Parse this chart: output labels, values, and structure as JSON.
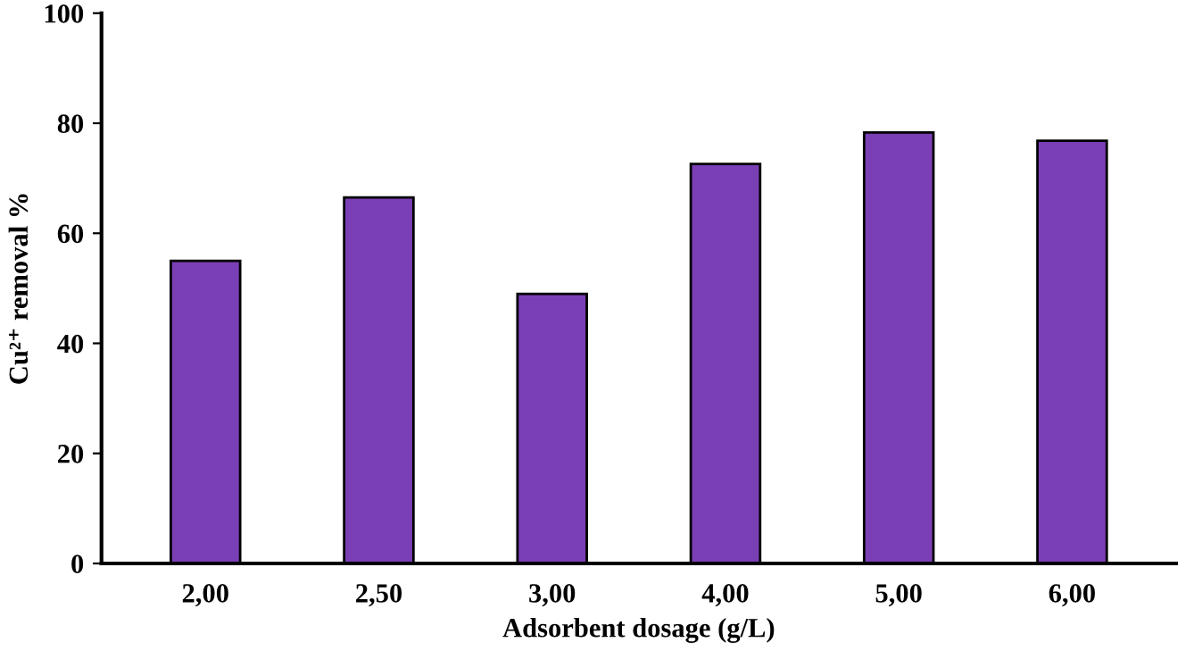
{
  "chart_data": {
    "type": "bar",
    "xlabel": "Adsorbent dosage (g/L)",
    "ylabel": "Cu²⁺ removal %",
    "categories": [
      "2,00",
      "2,50",
      "3,00",
      "4,00",
      "5,00",
      "6,00"
    ],
    "values": [
      55,
      66.5,
      49,
      72.6,
      78.3,
      76.8
    ],
    "color": "#7b3fb5",
    "ylim": [
      0,
      100
    ],
    "yticks": [
      0,
      20,
      40,
      60,
      80,
      100
    ],
    "grid": false
  }
}
